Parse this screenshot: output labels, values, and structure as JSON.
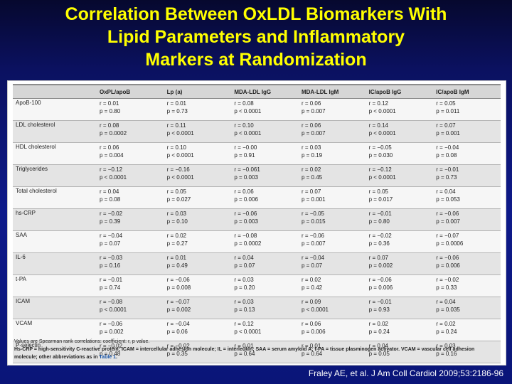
{
  "slide": {
    "title_lines": [
      "Correlation Between OxLDL Biomarkers With",
      "Lipid Parameters and Inflammatory",
      "Markers at Randomization"
    ],
    "citation": "Fraley AE, et al. J Am Coll Cardiol 2009;53:2186-96"
  },
  "table": {
    "headers": [
      "",
      "OxPL/apoB",
      "Lp (a)",
      "MDA-LDL IgG",
      "MDA-LDL IgM",
      "IC/apoB IgG",
      "IC/apoB IgM"
    ],
    "rows": [
      {
        "name": "ApoB-100",
        "cells": [
          [
            "r = 0.01",
            "p = 0.80"
          ],
          [
            "r = 0.01",
            "p = 0.73"
          ],
          [
            "r = 0.08",
            "p < 0.0001"
          ],
          [
            "r = 0.06",
            "p = 0.007"
          ],
          [
            "r = 0.12",
            "p < 0.0001"
          ],
          [
            "r = 0.05",
            "p = 0.011"
          ]
        ]
      },
      {
        "name": "LDL cholesterol",
        "cells": [
          [
            "r = 0.08",
            "p = 0.0002"
          ],
          [
            "r = 0.11",
            "p < 0.0001"
          ],
          [
            "r = 0.10",
            "p < 0.0001"
          ],
          [
            "r = 0.06",
            "p = 0.007"
          ],
          [
            "r = 0.14",
            "p < 0.0001"
          ],
          [
            "r = 0.07",
            "p = 0.001"
          ]
        ]
      },
      {
        "name": "HDL cholesterol",
        "cells": [
          [
            "r = 0.06",
            "p = 0.004"
          ],
          [
            "r = 0.10",
            "p < 0.0001"
          ],
          [
            "r = −0.00",
            "p = 0.91"
          ],
          [
            "r = 0.03",
            "p = 0.19"
          ],
          [
            "r = −0.05",
            "p = 0.030"
          ],
          [
            "r = −0.04",
            "p = 0.08"
          ]
        ]
      },
      {
        "name": "Triglycerides",
        "cells": [
          [
            "r = −0.12",
            "p < 0.0001"
          ],
          [
            "r = −0.16",
            "p < 0.0001"
          ],
          [
            "r = −0.061",
            "p = 0.003"
          ],
          [
            "r = 0.02",
            "p = 0.45"
          ],
          [
            "r = −0.12",
            "p < 0.0001"
          ],
          [
            "r = −0.01",
            "p = 0.73"
          ]
        ]
      },
      {
        "name": "Total cholesterol",
        "cells": [
          [
            "r = 0.04",
            "p = 0.08"
          ],
          [
            "r = 0.05",
            "p = 0.027"
          ],
          [
            "r = 0.06",
            "p = 0.006"
          ],
          [
            "r = 0.07",
            "p = 0.001"
          ],
          [
            "r = 0.05",
            "p = 0.017"
          ],
          [
            "r = 0.04",
            "p = 0.053"
          ]
        ]
      },
      {
        "name": "hs-CRP",
        "cells": [
          [
            "r = −0.02",
            "p = 0.39"
          ],
          [
            "r = 0.03",
            "p = 0.10"
          ],
          [
            "r = −0.06",
            "p = 0.003"
          ],
          [
            "r = −0.05",
            "p = 0.015"
          ],
          [
            "r = −0.01",
            "p = 0.80"
          ],
          [
            "r = −0.06",
            "p = 0.007"
          ]
        ]
      },
      {
        "name": "SAA",
        "cells": [
          [
            "r = −0.04",
            "p = 0.07"
          ],
          [
            "r = 0.02",
            "p = 0.27"
          ],
          [
            "r = −0.08",
            "p = 0.0002"
          ],
          [
            "r = −0.06",
            "p = 0.007"
          ],
          [
            "r = −0.02",
            "p = 0.36"
          ],
          [
            "r = −0.07",
            "p = 0.0006"
          ]
        ]
      },
      {
        "name": "IL-6",
        "cells": [
          [
            "r = −0.03",
            "p = 0.16"
          ],
          [
            "r = 0.01",
            "p = 0.49"
          ],
          [
            "r = 0.04",
            "p = 0.07"
          ],
          [
            "r = −0.04",
            "p = 0.07"
          ],
          [
            "r = 0.07",
            "p = 0.002"
          ],
          [
            "r = −0.06",
            "p = 0.006"
          ]
        ]
      },
      {
        "name": "t-PA",
        "cells": [
          [
            "r = −0.01",
            "p = 0.74"
          ],
          [
            "r = −0.06",
            "p = 0.008"
          ],
          [
            "r = 0.03",
            "p = 0.20"
          ],
          [
            "r = 0.02",
            "p = 0.42"
          ],
          [
            "r = −0.06",
            "p = 0.006"
          ],
          [
            "r = −0.02",
            "p = 0.33"
          ]
        ]
      },
      {
        "name": "ICAM",
        "cells": [
          [
            "r = −0.08",
            "p < 0.0001"
          ],
          [
            "r = −0.07",
            "p = 0.002"
          ],
          [
            "r = 0.03",
            "p = 0.13"
          ],
          [
            "r = 0.09",
            "p < 0.0001"
          ],
          [
            "r = −0.01",
            "p = 0.93"
          ],
          [
            "r = 0.04",
            "p = 0.035"
          ]
        ]
      },
      {
        "name": "VCAM",
        "cells": [
          [
            "r = −0.06",
            "p = 0.002"
          ],
          [
            "r = −0.04",
            "p = 0.06"
          ],
          [
            "r = 0.12",
            "p < 0.0001"
          ],
          [
            "r = 0.06",
            "p = 0.006"
          ],
          [
            "r = 0.02",
            "p = 0.24"
          ],
          [
            "r = 0.02",
            "p = 0.24"
          ]
        ]
      },
      {
        "name": "P-selectin",
        "cells": [
          [
            "r = −0.02",
            "p = 0.48"
          ],
          [
            "r = −0.02",
            "p = 0.35"
          ],
          [
            "r = 0.01",
            "p = 0.64"
          ],
          [
            "r = 0.01",
            "p = 0.64"
          ],
          [
            "r = 0.04",
            "p = 0.05"
          ],
          [
            "r = 0.03",
            "p = 0.16"
          ]
        ]
      }
    ],
    "footnote_line1": "Values are Spearman rank correlations: coefficient: r, p value.",
    "footnote_line2": "Hs-CRP = high-sensitivity C-reactive protein; ICAM = intercellular adhesion molecule; IL = interleukin; SAA = serum amyloid A; t-PA = tissue plasminogen activator. VCAM = vascular cell adhesion",
    "footnote_line3_prefix": "molecule; other abbreviations as in ",
    "footnote_link": "Table 1",
    "footnote_line3_suffix": "."
  },
  "colors": {
    "title": "#ffff00",
    "background": "#0e1a8a",
    "header_bg": "#d6d6d6",
    "link": "#1a56a8"
  }
}
